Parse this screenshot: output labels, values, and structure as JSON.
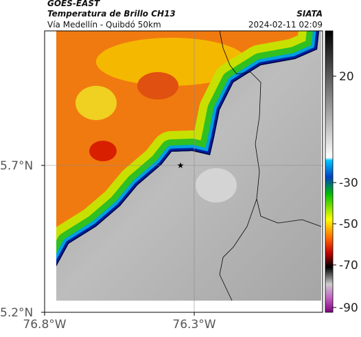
{
  "header": {
    "source": "GOES-EAST",
    "product": "Temperatura de Brillo CH13",
    "route": "Vía Medellín - Quibdó 50km",
    "org": "SIATA",
    "datetime": "2024-02-11 02:09"
  },
  "axes": {
    "y_labels": [
      "5.7°N",
      "5.2°N"
    ],
    "x_labels": [
      "76.8°W",
      "76.3°W"
    ]
  },
  "colorbar": {
    "ticks": [
      "20",
      "-30",
      "-50",
      "-70",
      "-90"
    ]
  }
}
